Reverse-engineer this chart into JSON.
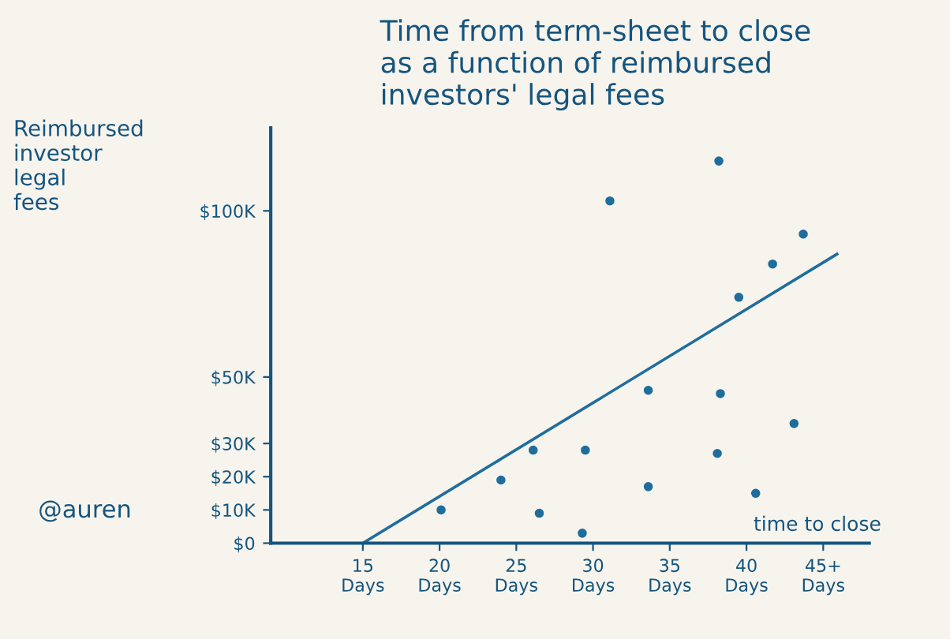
{
  "chart_data": {
    "type": "scatter",
    "title": "Time from term-sheet to close\nas a function of reimbursed\ninvestors' legal fees",
    "xlabel": "time to close",
    "ylabel": "Reimbursed\ninvestor\nlegal\nfees",
    "annotations": [
      "@auren"
    ],
    "series": [
      {
        "color": "#1f6d9c",
        "marker": "circle",
        "x": [
          20.1,
          24.0,
          26.5,
          26.1,
          29.5,
          29.3,
          31.1,
          33.6,
          33.6,
          38.2,
          38.3,
          38.1,
          39.5,
          41.7,
          43.7,
          40.6,
          43.1
        ],
        "values": [
          10,
          19,
          9,
          28,
          28,
          3,
          103,
          46,
          17,
          115,
          45,
          27,
          74,
          84,
          93,
          15,
          36
        ]
      },
      {
        "type": "line",
        "color": "#1f6d9c",
        "x": [
          15,
          45.9
        ],
        "values": [
          0,
          87
        ]
      }
    ],
    "xlim": [
      9,
      48
    ],
    "ylim": [
      0,
      125
    ],
    "xticks": [
      {
        "value": 15,
        "label": "15\nDays"
      },
      {
        "value": 20,
        "label": "20\nDays"
      },
      {
        "value": 25,
        "label": "25\nDays"
      },
      {
        "value": 30,
        "label": "30\nDays"
      },
      {
        "value": 35,
        "label": "35\nDays"
      },
      {
        "value": 40,
        "label": "40\nDays"
      },
      {
        "value": 45,
        "label": "45+\nDays"
      }
    ],
    "yticks": [
      {
        "value": 0,
        "label": "$0"
      },
      {
        "value": 10,
        "label": "$10K"
      },
      {
        "value": 20,
        "label": "$20K"
      },
      {
        "value": 30,
        "label": "$30K"
      },
      {
        "value": 50,
        "label": "$50K"
      },
      {
        "value": 100,
        "label": "$100K"
      }
    ],
    "grid": false,
    "legend": false
  }
}
